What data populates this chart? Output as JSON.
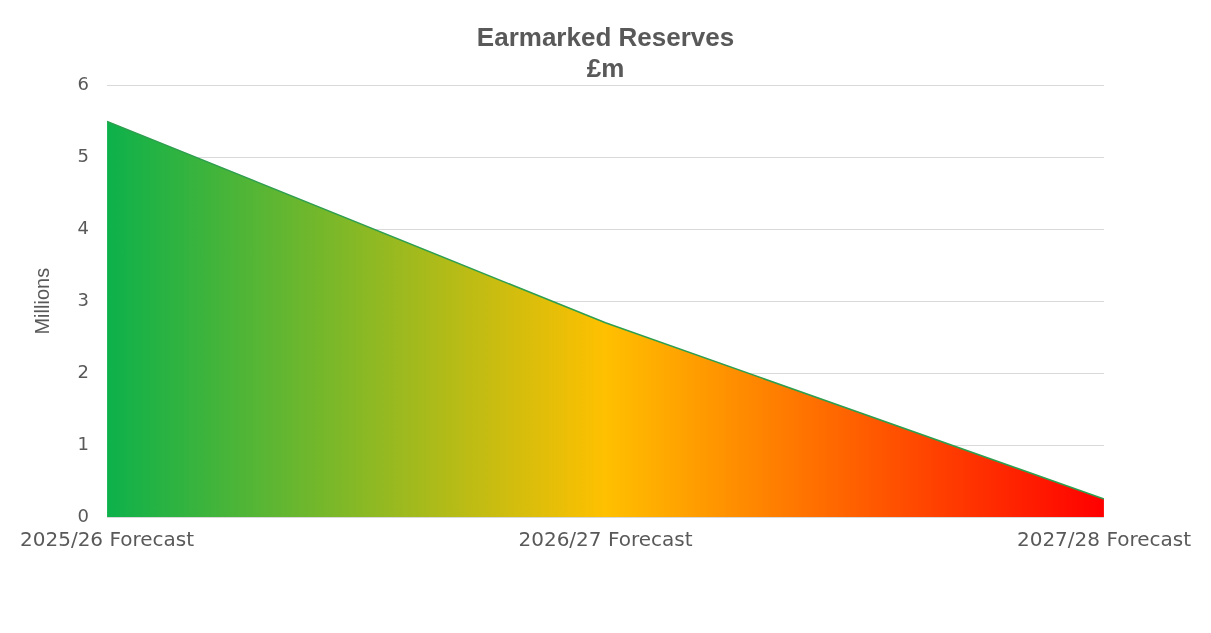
{
  "chart_data": {
    "type": "area",
    "title": "Earmarked Reserves",
    "subtitle": "£m",
    "ylabel": "Millions",
    "categories": [
      "2025/26 Forecast",
      "2026/27 Forecast",
      "2027/28 Forecast"
    ],
    "series": [
      {
        "color": "#2e9e4f",
        "colors": [
          "#0db14b",
          "#ffc000",
          "#ff0000"
        ],
        "values": [
          5.5,
          2.7,
          0.25
        ]
      }
    ],
    "ylim": [
      0,
      6
    ],
    "yticks": [
      0,
      1,
      2,
      3,
      4,
      5,
      6
    ],
    "grid": "y",
    "legend": false
  }
}
